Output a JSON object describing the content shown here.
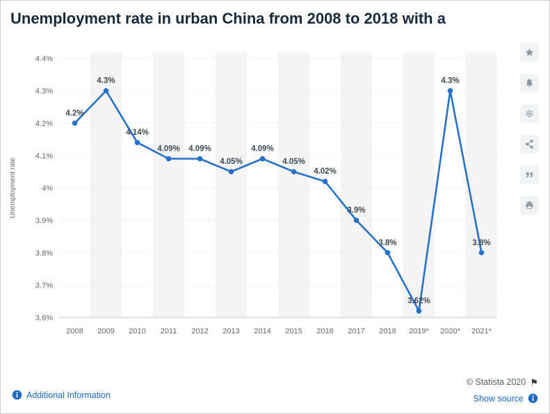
{
  "page": {
    "title": "Unemployment rate in urban China from 2008 to 2018 with a"
  },
  "toolbar": {
    "icons": [
      "star-icon",
      "bell-icon",
      "gear-icon",
      "share-icon",
      "quote-icon",
      "print-icon"
    ]
  },
  "footer": {
    "additional_info_label": "Additional Information",
    "copyright_label": "© Statista 2020",
    "show_source_label": "Show source",
    "link_color": "#1a6ac4"
  },
  "chart_data": {
    "type": "line",
    "title": "Unemployment rate in urban China from 2008 to 2018 with a",
    "categories": [
      "2008",
      "2009",
      "2010",
      "2011",
      "2012",
      "2013",
      "2014",
      "2015",
      "2016",
      "2017",
      "2018",
      "2019*",
      "2020*",
      "2021*"
    ],
    "values": [
      4.2,
      4.3,
      4.14,
      4.09,
      4.09,
      4.05,
      4.09,
      4.05,
      4.02,
      3.9,
      3.8,
      3.62,
      4.3,
      3.8
    ],
    "point_labels": [
      "4.2%",
      "4.3%",
      "4.14%",
      "4.09%",
      "4.09%",
      "4.05%",
      "4.09%",
      "4.05%",
      "4.02%",
      "3.9%",
      "3.8%",
      "3.62%",
      "4.3%",
      "3.8%"
    ],
    "xlabel": "",
    "ylabel": "Unemployment rate",
    "ylim": [
      3.6,
      4.4
    ],
    "ytick_values": [
      3.6,
      3.7,
      3.8,
      3.9,
      4.0,
      4.1,
      4.2,
      4.3,
      4.4
    ],
    "ytick_labels": [
      "3.6%",
      "3.7%",
      "3.8%",
      "3.9%",
      "4%",
      "4.1%",
      "4.2%",
      "4.3%",
      "4.4%"
    ],
    "grid": true,
    "legend": false,
    "line_color": "#2570c8",
    "point_color": "#2570c8",
    "value_label_color": "#3c4a57",
    "axis_text_color": "#666666",
    "stripe_color": "#f4f4f4"
  }
}
